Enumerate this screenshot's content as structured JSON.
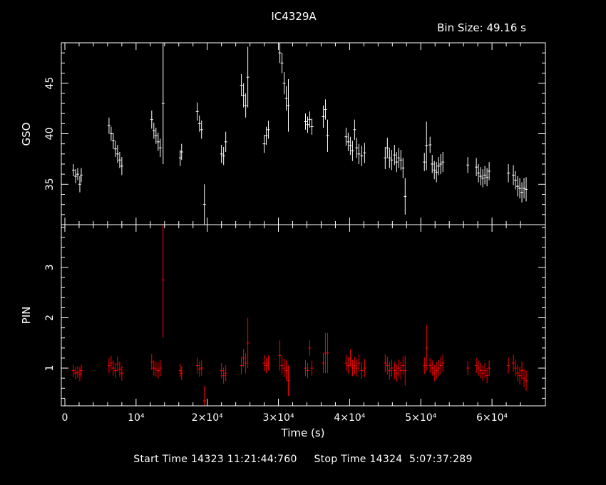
{
  "title": "IC4329A",
  "bin_size_label": "Bin Size: 49.16 s",
  "footer": {
    "start_label": "Start Time",
    "start_value": "14323 11:21:44:760",
    "stop_label": "Stop Time",
    "stop_value": "14324  5:07:37:289"
  },
  "colors": {
    "background": "#000000",
    "axes": "#ffffff",
    "gso": "#ffffff",
    "pin": "#ff0000"
  },
  "chart_data": [
    {
      "type": "scatter",
      "panel": "top",
      "ylabel": "GSO",
      "xlim": [
        -500,
        67500
      ],
      "ylim": [
        31,
        49
      ],
      "yticks": [
        35,
        40,
        45
      ],
      "series": [
        {
          "color": "#ffffff",
          "points": [
            [
              1200,
              36.4,
              0.6
            ],
            [
              1500,
              35.8,
              0.7
            ],
            [
              1800,
              36.0,
              0.6
            ],
            [
              2100,
              35.0,
              0.8
            ],
            [
              2300,
              35.9,
              0.7
            ],
            [
              6200,
              40.8,
              0.8
            ],
            [
              6500,
              40.0,
              0.7
            ],
            [
              6800,
              39.3,
              0.8
            ],
            [
              7100,
              38.5,
              0.8
            ],
            [
              7400,
              38.0,
              0.9
            ],
            [
              7700,
              37.4,
              0.8
            ],
            [
              8000,
              36.8,
              0.9
            ],
            [
              12200,
              41.4,
              0.9
            ],
            [
              12500,
              40.3,
              0.8
            ],
            [
              12800,
              39.8,
              0.8
            ],
            [
              13100,
              39.2,
              0.9
            ],
            [
              13400,
              38.6,
              0.9
            ],
            [
              13800,
              43.0,
              6.0
            ],
            [
              16200,
              37.6,
              0.8
            ],
            [
              16400,
              38.2,
              0.8
            ],
            [
              18600,
              42.2,
              0.9
            ],
            [
              18900,
              41.0,
              0.8
            ],
            [
              19200,
              40.4,
              0.9
            ],
            [
              19600,
              33.0,
              2.0
            ],
            [
              22000,
              38.0,
              0.9
            ],
            [
              22300,
              37.8,
              0.9
            ],
            [
              22600,
              39.2,
              1.0
            ],
            [
              24800,
              44.8,
              1.1
            ],
            [
              25100,
              43.8,
              1.2
            ],
            [
              25400,
              42.8,
              1.2
            ],
            [
              25700,
              45.6,
              3.0
            ],
            [
              28000,
              39.0,
              0.9
            ],
            [
              28300,
              39.8,
              0.9
            ],
            [
              28600,
              40.4,
              0.9
            ],
            [
              30200,
              48.0,
              1.0
            ],
            [
              30500,
              47.0,
              1.0
            ],
            [
              30800,
              45.0,
              1.1
            ],
            [
              31100,
              43.5,
              1.2
            ],
            [
              31400,
              42.8,
              2.6
            ],
            [
              33800,
              41.2,
              0.8
            ],
            [
              34100,
              40.9,
              0.8
            ],
            [
              34400,
              41.4,
              0.8
            ],
            [
              34700,
              40.7,
              0.8
            ],
            [
              36300,
              41.7,
              1.1
            ],
            [
              36600,
              42.4,
              1.0
            ],
            [
              36900,
              39.8,
              1.6
            ],
            [
              39500,
              39.7,
              0.9
            ],
            [
              39800,
              39.2,
              0.9
            ],
            [
              40100,
              38.8,
              0.9
            ],
            [
              40400,
              38.3,
              1.0
            ],
            [
              40700,
              40.4,
              1.0
            ],
            [
              41000,
              38.6,
              1.0
            ],
            [
              41300,
              38.0,
              1.0
            ],
            [
              41700,
              37.8,
              1.0
            ],
            [
              42100,
              38.1,
              1.0
            ],
            [
              45000,
              37.6,
              1.1
            ],
            [
              45300,
              38.6,
              1.0
            ],
            [
              45600,
              37.6,
              1.0
            ],
            [
              45900,
              37.4,
              1.0
            ],
            [
              46300,
              37.9,
              1.0
            ],
            [
              46600,
              37.2,
              1.0
            ],
            [
              46900,
              37.6,
              1.0
            ],
            [
              47200,
              37.4,
              1.0
            ],
            [
              47500,
              36.6,
              1.0
            ],
            [
              47800,
              33.8,
              1.8
            ],
            [
              50500,
              37.2,
              0.9
            ],
            [
              50800,
              38.8,
              2.4
            ],
            [
              51300,
              38.9,
              0.8
            ],
            [
              51600,
              37.0,
              0.9
            ],
            [
              51900,
              36.4,
              0.9
            ],
            [
              52200,
              36.2,
              1.0
            ],
            [
              52500,
              36.8,
              0.9
            ],
            [
              52800,
              37.0,
              1.0
            ],
            [
              53100,
              37.2,
              1.0
            ],
            [
              56600,
              36.9,
              0.8
            ],
            [
              57800,
              36.7,
              0.9
            ],
            [
              58100,
              36.1,
              0.9
            ],
            [
              58400,
              35.8,
              0.9
            ],
            [
              58700,
              35.6,
              0.9
            ],
            [
              59000,
              35.9,
              0.9
            ],
            [
              59300,
              35.7,
              0.9
            ],
            [
              59600,
              36.3,
              0.9
            ],
            [
              62300,
              36.1,
              0.9
            ],
            [
              63000,
              35.9,
              1.0
            ],
            [
              63300,
              35.4,
              0.9
            ],
            [
              63600,
              34.8,
              1.0
            ],
            [
              63900,
              34.6,
              1.0
            ],
            [
              64200,
              34.2,
              1.0
            ],
            [
              64500,
              34.6,
              1.0
            ],
            [
              64800,
              34.5,
              1.2
            ]
          ]
        }
      ]
    },
    {
      "type": "scatter",
      "panel": "bottom",
      "xlabel": "Time (s)",
      "ylabel": "PIN",
      "xlim": [
        -500,
        67500
      ],
      "ylim": [
        0.25,
        3.85
      ],
      "yticks": [
        1,
        2,
        3
      ],
      "xticks": [
        0,
        10000,
        20000,
        30000,
        40000,
        50000,
        60000
      ],
      "xtick_labels": [
        "0",
        "10⁴",
        "2×10⁴",
        "3×10⁴",
        "4×10⁴",
        "5×10⁴",
        "6×10⁴"
      ],
      "series": [
        {
          "color": "#ff0000",
          "points": [
            [
              1200,
              0.95,
              0.12
            ],
            [
              1500,
              0.9,
              0.12
            ],
            [
              1800,
              0.92,
              0.12
            ],
            [
              2100,
              0.88,
              0.14
            ],
            [
              2300,
              0.95,
              0.12
            ],
            [
              6200,
              1.05,
              0.15
            ],
            [
              6500,
              1.1,
              0.14
            ],
            [
              6800,
              1.0,
              0.15
            ],
            [
              7100,
              0.95,
              0.15
            ],
            [
              7400,
              1.08,
              0.15
            ],
            [
              7700,
              0.98,
              0.15
            ],
            [
              8000,
              0.9,
              0.15
            ],
            [
              12200,
              1.12,
              0.16
            ],
            [
              12500,
              1.0,
              0.15
            ],
            [
              12800,
              0.98,
              0.15
            ],
            [
              13100,
              0.95,
              0.16
            ],
            [
              13400,
              1.0,
              0.16
            ],
            [
              13800,
              2.75,
              1.15
            ],
            [
              16200,
              0.95,
              0.13
            ],
            [
              16400,
              0.9,
              0.14
            ],
            [
              18600,
              1.05,
              0.16
            ],
            [
              18900,
              0.98,
              0.15
            ],
            [
              19200,
              1.0,
              0.15
            ],
            [
              19600,
              0.35,
              0.3
            ],
            [
              22000,
              0.95,
              0.15
            ],
            [
              22300,
              0.85,
              0.16
            ],
            [
              22600,
              0.9,
              0.16
            ],
            [
              24800,
              1.05,
              0.18
            ],
            [
              25100,
              1.2,
              0.18
            ],
            [
              25400,
              1.1,
              0.2
            ],
            [
              25700,
              1.5,
              0.5
            ],
            [
              28000,
              1.1,
              0.16
            ],
            [
              28300,
              1.05,
              0.15
            ],
            [
              28600,
              1.1,
              0.15
            ],
            [
              30200,
              1.25,
              0.3
            ],
            [
              30500,
              1.05,
              0.18
            ],
            [
              30800,
              1.0,
              0.18
            ],
            [
              31100,
              0.95,
              0.2
            ],
            [
              31400,
              0.75,
              0.3
            ],
            [
              33800,
              1.0,
              0.16
            ],
            [
              34100,
              0.95,
              0.15
            ],
            [
              34400,
              1.4,
              0.15
            ],
            [
              34700,
              1.0,
              0.15
            ],
            [
              36300,
              1.1,
              0.2
            ],
            [
              36600,
              1.3,
              0.4
            ],
            [
              36900,
              1.3,
              0.4
            ],
            [
              39500,
              1.1,
              0.16
            ],
            [
              39800,
              1.05,
              0.16
            ],
            [
              40100,
              1.2,
              0.18
            ],
            [
              40400,
              1.0,
              0.16
            ],
            [
              40700,
              1.05,
              0.17
            ],
            [
              41000,
              1.0,
              0.17
            ],
            [
              41300,
              1.1,
              0.17
            ],
            [
              41700,
              0.95,
              0.17
            ],
            [
              42100,
              1.0,
              0.18
            ],
            [
              45000,
              1.1,
              0.18
            ],
            [
              45300,
              1.05,
              0.18
            ],
            [
              45600,
              0.95,
              0.18
            ],
            [
              45900,
              1.0,
              0.17
            ],
            [
              46300,
              0.95,
              0.17
            ],
            [
              46600,
              0.9,
              0.17
            ],
            [
              46900,
              1.0,
              0.17
            ],
            [
              47200,
              0.95,
              0.18
            ],
            [
              47500,
              1.05,
              0.18
            ],
            [
              47800,
              0.95,
              0.3
            ],
            [
              50500,
              1.05,
              0.17
            ],
            [
              50800,
              1.4,
              0.45
            ],
            [
              51300,
              1.05,
              0.15
            ],
            [
              51600,
              1.0,
              0.15
            ],
            [
              51900,
              0.9,
              0.16
            ],
            [
              52200,
              0.95,
              0.17
            ],
            [
              52500,
              1.0,
              0.16
            ],
            [
              52800,
              1.05,
              0.17
            ],
            [
              53100,
              1.1,
              0.17
            ],
            [
              56600,
              1.0,
              0.14
            ],
            [
              57800,
              1.05,
              0.15
            ],
            [
              58100,
              1.0,
              0.15
            ],
            [
              58400,
              0.95,
              0.15
            ],
            [
              58700,
              0.9,
              0.15
            ],
            [
              59000,
              0.95,
              0.15
            ],
            [
              59300,
              0.85,
              0.15
            ],
            [
              59600,
              1.0,
              0.15
            ],
            [
              62300,
              1.05,
              0.16
            ],
            [
              63000,
              1.1,
              0.17
            ],
            [
              63300,
              1.0,
              0.17
            ],
            [
              63600,
              0.9,
              0.17
            ],
            [
              63900,
              0.85,
              0.18
            ],
            [
              64200,
              0.95,
              0.18
            ],
            [
              64500,
              0.8,
              0.18
            ],
            [
              64800,
              0.75,
              0.2
            ]
          ]
        }
      ]
    }
  ]
}
